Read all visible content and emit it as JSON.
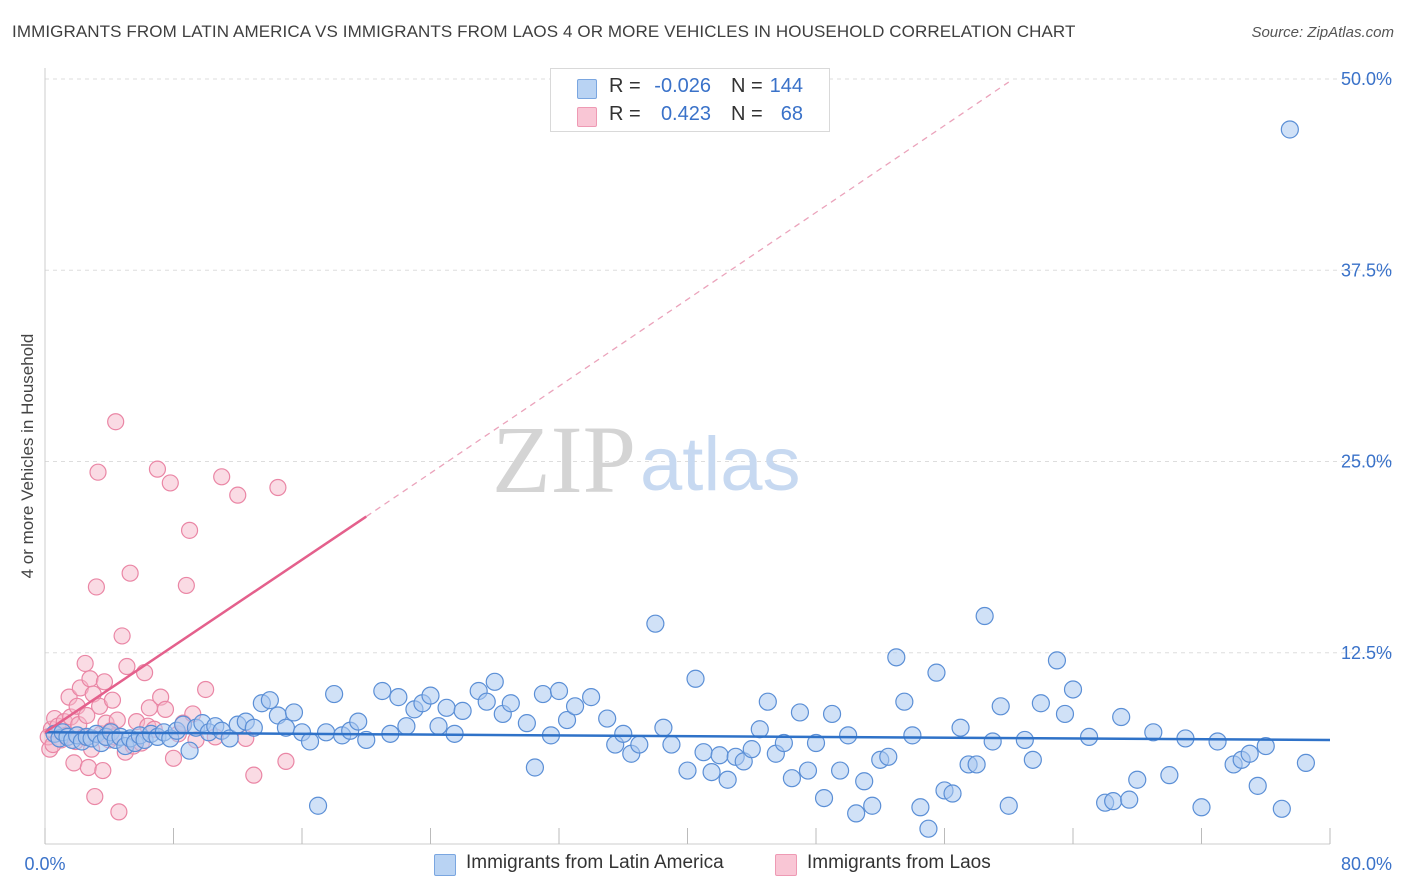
{
  "title": "IMMIGRANTS FROM LATIN AMERICA VS IMMIGRANTS FROM LAOS 4 OR MORE VEHICLES IN HOUSEHOLD CORRELATION CHART",
  "source": "Source: ZipAtlas.com",
  "watermark": {
    "zip": "ZIP",
    "atlas": "atlas"
  },
  "legend": {
    "r_label": "R =",
    "n_label": "N =",
    "series": [
      {
        "name": "Immigrants from Latin America",
        "r": "-0.026",
        "n": "144"
      },
      {
        "name": "Immigrants from Laos",
        "r": "0.423",
        "n": "68"
      }
    ]
  },
  "colors": {
    "blue_fill": "#a9c8f0",
    "blue_stroke": "#5b8fd6",
    "blue_line": "#2f72c8",
    "pink_fill": "#f6b7c9",
    "pink_stroke": "#ea86a5",
    "pink_line": "#e4608c",
    "tick_label": "#3a72c9",
    "grid": "#dddddd"
  },
  "chart_data": {
    "type": "scatter",
    "title": "IMMIGRANTS FROM LATIN AMERICA VS IMMIGRANTS FROM LAOS 4 OR MORE VEHICLES IN HOUSEHOLD CORRELATION CHART",
    "xlabel": "",
    "ylabel": "4 or more Vehicles in Household",
    "xlim": [
      0,
      80
    ],
    "ylim": [
      0,
      50
    ],
    "x_tick_labels": [
      "0.0%",
      "80.0%"
    ],
    "y_ticks": [
      12.5,
      25.0,
      37.5,
      50.0
    ],
    "y_tick_labels": [
      "12.5%",
      "25.0%",
      "37.5%",
      "50.0%"
    ],
    "grid": true,
    "legend_position": "top-center",
    "series": [
      {
        "name": "Immigrants from Latin America",
        "color": "blue",
        "trend": {
          "x": [
            0,
            80
          ],
          "y": [
            7.3,
            6.8
          ],
          "dashed_extension": false
        },
        "points": [
          [
            0.6,
            7.2
          ],
          [
            0.9,
            6.9
          ],
          [
            1.1,
            7.3
          ],
          [
            1.4,
            7.0
          ],
          [
            1.7,
            6.8
          ],
          [
            2.0,
            7.1
          ],
          [
            2.3,
            6.7
          ],
          [
            2.6,
            7.0
          ],
          [
            2.9,
            6.9
          ],
          [
            3.2,
            7.2
          ],
          [
            3.5,
            6.6
          ],
          [
            3.8,
            7.0
          ],
          [
            4.1,
            7.3
          ],
          [
            4.4,
            6.8
          ],
          [
            4.7,
            7.0
          ],
          [
            5.0,
            6.4
          ],
          [
            5.3,
            6.9
          ],
          [
            5.6,
            6.6
          ],
          [
            5.9,
            7.1
          ],
          [
            6.2,
            6.8
          ],
          [
            6.6,
            7.2
          ],
          [
            7.0,
            7.0
          ],
          [
            7.4,
            7.3
          ],
          [
            7.8,
            6.9
          ],
          [
            8.2,
            7.4
          ],
          [
            8.6,
            7.8
          ],
          [
            9.0,
            6.1
          ],
          [
            9.4,
            7.6
          ],
          [
            9.8,
            7.9
          ],
          [
            10.2,
            7.3
          ],
          [
            10.6,
            7.7
          ],
          [
            11.0,
            7.4
          ],
          [
            11.5,
            6.9
          ],
          [
            12.0,
            7.8
          ],
          [
            12.5,
            8.0
          ],
          [
            13.0,
            7.6
          ],
          [
            13.5,
            9.2
          ],
          [
            14.0,
            9.4
          ],
          [
            14.5,
            8.4
          ],
          [
            15.0,
            7.6
          ],
          [
            15.5,
            8.6
          ],
          [
            16.0,
            7.3
          ],
          [
            16.5,
            6.7
          ],
          [
            17.0,
            2.5
          ],
          [
            17.5,
            7.3
          ],
          [
            18.0,
            9.8
          ],
          [
            18.5,
            7.1
          ],
          [
            19.0,
            7.4
          ],
          [
            19.5,
            8.0
          ],
          [
            20.0,
            6.8
          ],
          [
            21.0,
            10.0
          ],
          [
            21.5,
            7.2
          ],
          [
            22.0,
            9.6
          ],
          [
            22.5,
            7.7
          ],
          [
            23.0,
            8.8
          ],
          [
            23.5,
            9.2
          ],
          [
            24.0,
            9.7
          ],
          [
            24.5,
            7.7
          ],
          [
            25.0,
            8.9
          ],
          [
            25.5,
            7.2
          ],
          [
            26.0,
            8.7
          ],
          [
            27.0,
            10.0
          ],
          [
            27.5,
            9.3
          ],
          [
            28.0,
            10.6
          ],
          [
            28.5,
            8.5
          ],
          [
            29.0,
            9.2
          ],
          [
            30.0,
            7.9
          ],
          [
            30.5,
            5.0
          ],
          [
            31.0,
            9.8
          ],
          [
            31.5,
            7.1
          ],
          [
            32.0,
            10.0
          ],
          [
            32.5,
            8.1
          ],
          [
            33.0,
            9.0
          ],
          [
            34.0,
            9.6
          ],
          [
            35.0,
            8.2
          ],
          [
            35.5,
            6.5
          ],
          [
            36.0,
            7.2
          ],
          [
            36.5,
            5.9
          ],
          [
            37.0,
            6.5
          ],
          [
            38.0,
            14.4
          ],
          [
            38.5,
            7.6
          ],
          [
            39.0,
            6.5
          ],
          [
            40.0,
            4.8
          ],
          [
            40.5,
            10.8
          ],
          [
            41.0,
            6.0
          ],
          [
            41.5,
            4.7
          ],
          [
            42.0,
            5.8
          ],
          [
            42.5,
            4.2
          ],
          [
            43.0,
            5.7
          ],
          [
            43.5,
            5.4
          ],
          [
            44.0,
            6.2
          ],
          [
            44.5,
            7.5
          ],
          [
            45.0,
            9.3
          ],
          [
            45.5,
            5.9
          ],
          [
            46.0,
            6.6
          ],
          [
            46.5,
            4.3
          ],
          [
            47.0,
            8.6
          ],
          [
            47.5,
            4.8
          ],
          [
            48.0,
            6.6
          ],
          [
            48.5,
            3.0
          ],
          [
            49.0,
            8.5
          ],
          [
            49.5,
            4.8
          ],
          [
            50.0,
            7.1
          ],
          [
            50.5,
            2.0
          ],
          [
            51.0,
            4.1
          ],
          [
            51.5,
            2.5
          ],
          [
            52.0,
            5.5
          ],
          [
            52.5,
            5.7
          ],
          [
            53.0,
            12.2
          ],
          [
            53.5,
            9.3
          ],
          [
            54.0,
            7.1
          ],
          [
            54.5,
            2.4
          ],
          [
            55.0,
            1.0
          ],
          [
            55.5,
            11.2
          ],
          [
            56.0,
            3.5
          ],
          [
            56.5,
            3.3
          ],
          [
            57.0,
            7.6
          ],
          [
            57.5,
            5.2
          ],
          [
            58.0,
            5.2
          ],
          [
            58.5,
            14.9
          ],
          [
            59.0,
            6.7
          ],
          [
            59.5,
            9.0
          ],
          [
            60.0,
            2.5
          ],
          [
            61.0,
            6.8
          ],
          [
            61.5,
            5.5
          ],
          [
            62.0,
            9.2
          ],
          [
            63.0,
            12.0
          ],
          [
            63.5,
            8.5
          ],
          [
            64.0,
            10.1
          ],
          [
            65.0,
            7.0
          ],
          [
            66.0,
            2.7
          ],
          [
            66.5,
            2.8
          ],
          [
            67.0,
            8.3
          ],
          [
            67.5,
            2.9
          ],
          [
            68.0,
            4.2
          ],
          [
            69.0,
            7.3
          ],
          [
            70.0,
            4.5
          ],
          [
            71.0,
            6.9
          ],
          [
            72.0,
            2.4
          ],
          [
            73.0,
            6.7
          ],
          [
            74.0,
            5.2
          ],
          [
            74.5,
            5.5
          ],
          [
            75.0,
            5.9
          ],
          [
            75.5,
            3.8
          ],
          [
            76.0,
            6.4
          ],
          [
            77.0,
            2.3
          ],
          [
            77.5,
            46.7
          ],
          [
            78.5,
            5.3
          ]
        ]
      },
      {
        "name": "Immigrants from Laos",
        "color": "pink",
        "trend": {
          "x": [
            0,
            20
          ],
          "y": [
            7.3,
            21.4
          ],
          "dashed_extension": true,
          "dashed_to": [
            60,
            49.8
          ]
        },
        "points": [
          [
            0.3,
            6.2
          ],
          [
            0.4,
            7.5
          ],
          [
            0.6,
            8.2
          ],
          [
            0.8,
            7.7
          ],
          [
            1.0,
            6.8
          ],
          [
            1.2,
            8.0
          ],
          [
            1.3,
            7.1
          ],
          [
            1.5,
            9.6
          ],
          [
            1.6,
            8.3
          ],
          [
            1.8,
            5.3
          ],
          [
            1.9,
            6.7
          ],
          [
            2.0,
            9.0
          ],
          [
            2.1,
            7.8
          ],
          [
            2.2,
            10.2
          ],
          [
            2.4,
            7.0
          ],
          [
            2.5,
            11.8
          ],
          [
            2.6,
            8.4
          ],
          [
            2.7,
            5.0
          ],
          [
            2.8,
            10.8
          ],
          [
            2.9,
            6.2
          ],
          [
            3.0,
            9.8
          ],
          [
            3.1,
            3.1
          ],
          [
            3.2,
            16.8
          ],
          [
            3.3,
            24.3
          ],
          [
            3.4,
            9.0
          ],
          [
            3.5,
            7.2
          ],
          [
            3.6,
            4.8
          ],
          [
            3.7,
            10.6
          ],
          [
            3.8,
            7.9
          ],
          [
            4.0,
            6.8
          ],
          [
            4.1,
            7.4
          ],
          [
            4.2,
            9.4
          ],
          [
            4.3,
            7.0
          ],
          [
            4.4,
            27.6
          ],
          [
            4.5,
            8.1
          ],
          [
            4.6,
            2.1
          ],
          [
            4.8,
            13.6
          ],
          [
            5.0,
            6.0
          ],
          [
            5.1,
            11.6
          ],
          [
            5.3,
            17.7
          ],
          [
            5.5,
            6.4
          ],
          [
            5.7,
            8.0
          ],
          [
            6.0,
            6.6
          ],
          [
            6.2,
            11.2
          ],
          [
            6.4,
            7.7
          ],
          [
            6.5,
            8.9
          ],
          [
            6.8,
            7.5
          ],
          [
            7.0,
            24.5
          ],
          [
            7.2,
            9.6
          ],
          [
            7.5,
            8.8
          ],
          [
            7.8,
            23.6
          ],
          [
            8.0,
            5.6
          ],
          [
            8.3,
            7.2
          ],
          [
            8.6,
            7.9
          ],
          [
            8.8,
            16.9
          ],
          [
            9.0,
            20.5
          ],
          [
            9.2,
            8.5
          ],
          [
            9.4,
            6.8
          ],
          [
            10.0,
            10.1
          ],
          [
            10.6,
            7.0
          ],
          [
            11.0,
            24.0
          ],
          [
            12.0,
            22.8
          ],
          [
            12.5,
            6.9
          ],
          [
            13.0,
            4.5
          ],
          [
            14.5,
            23.3
          ],
          [
            15.0,
            5.4
          ],
          [
            0.2,
            7.0
          ],
          [
            0.5,
            6.5
          ]
        ]
      }
    ]
  }
}
